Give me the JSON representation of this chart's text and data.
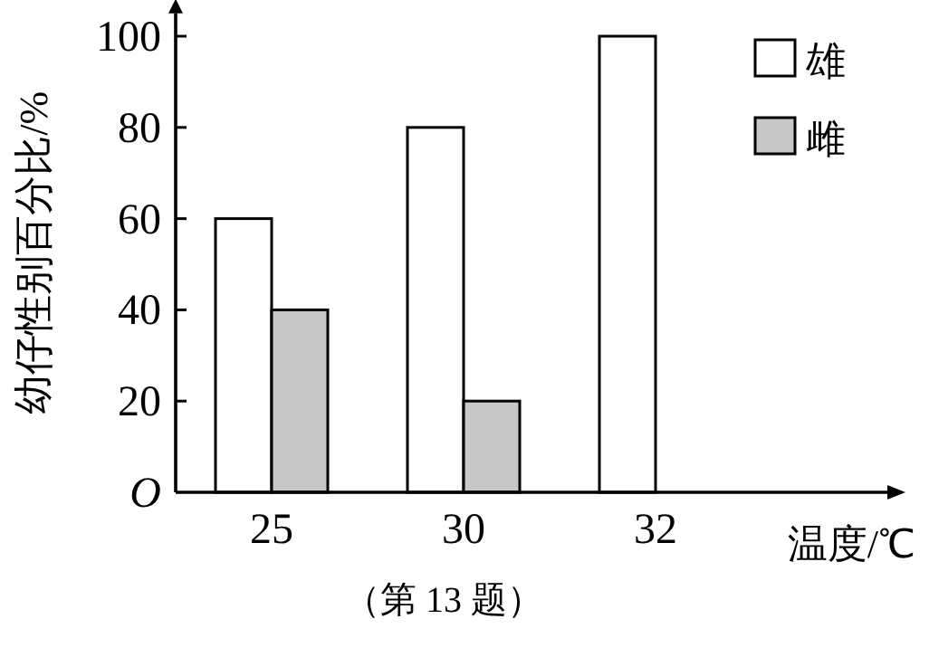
{
  "chart_data": {
    "type": "bar",
    "ylabel": "幼仔性别百分比/%",
    "xlabel": "温度/℃",
    "categories": [
      "25",
      "30",
      "32"
    ],
    "series": [
      {
        "name": "雄",
        "color": "#ffffff",
        "values": [
          60,
          80,
          100
        ]
      },
      {
        "name": "雌",
        "color": "#c8c8c8",
        "values": [
          40,
          20,
          null
        ]
      }
    ],
    "ylim": [
      0,
      105
    ],
    "yticks": [
      {
        "value": 0,
        "label": "O"
      },
      20,
      40,
      60,
      80,
      100
    ],
    "legend": "top right",
    "grid": false,
    "annotations": [
      "（第 13 题）"
    ]
  }
}
